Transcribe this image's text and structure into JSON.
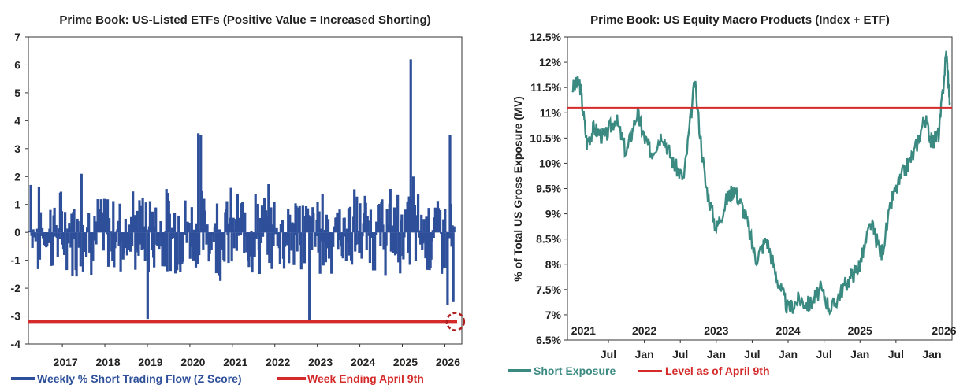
{
  "colors": {
    "bar_blue": "#2e4f9a",
    "ref_red": "#d42a2a",
    "line_teal": "#3b8a82",
    "axis": "#333333",
    "text_blue": "#2e4f9a",
    "text_teal": "#3b8a82",
    "text_red": "#d42a2a"
  },
  "chart_data": [
    {
      "type": "bar",
      "title": "Prime Book: US-Listed ETFs (Positive Value = Increased Shorting)",
      "xlabel": "",
      "ylabel": "",
      "ylim": [
        -4,
        7
      ],
      "yticks": [
        "7",
        "6",
        "5",
        "4",
        "3",
        "2",
        "1",
        "0",
        "-1",
        "-2",
        "-3",
        "-4"
      ],
      "xticks": [
        "2017",
        "2018",
        "2019",
        "2020",
        "2021",
        "2022",
        "2023",
        "2024",
        "2025",
        "2026"
      ],
      "xlim": [
        2016.2,
        2026.4
      ],
      "grid": false,
      "legend": [
        "Weekly % Short Trading Flow (Z Score)",
        "Week Ending April 9th"
      ],
      "legend_position": "bottom",
      "reference_line": {
        "name": "Week Ending April 9th",
        "value": -3.2
      },
      "series": [
        {
          "name": "Weekly % Short Trading Flow (Z Score)",
          "highlights": [
            {
              "x": 2016.25,
              "value": 1.7
            },
            {
              "x": 2017.45,
              "value": 2.1
            },
            {
              "x": 2019.0,
              "value": -3.1
            },
            {
              "x": 2020.2,
              "value": 3.55
            },
            {
              "x": 2020.25,
              "value": 3.5
            },
            {
              "x": 2022.8,
              "value": -3.2
            },
            {
              "x": 2025.2,
              "value": 6.2
            },
            {
              "x": 2025.25,
              "value": 2.0
            },
            {
              "x": 2026.05,
              "value": -2.6
            },
            {
              "x": 2026.12,
              "value": 3.5
            },
            {
              "x": 2026.2,
              "value": -2.5
            }
          ]
        }
      ],
      "annotation": "dashed circle marks latest week"
    },
    {
      "type": "line",
      "title": "Prime Book: US Equity Macro Products (Index + ETF)",
      "xlabel": "",
      "ylabel": "% of Total US Gross Exposure (MV)",
      "ylim": [
        6.5,
        12.5
      ],
      "yticks": [
        "12.5%",
        "12%",
        "11.5%",
        "11%",
        "10.5%",
        "10%",
        "9.5%",
        "9%",
        "8.5%",
        "8%",
        "7.5%",
        "7%",
        "6.5%"
      ],
      "year_labels": [
        "2021",
        "2022",
        "2023",
        "2024",
        "2025",
        "2026"
      ],
      "month_labels": [
        "Jul",
        "Jan",
        "Jul",
        "Jan",
        "Jul",
        "Jan",
        "Jul",
        "Jan",
        "Jul",
        "Jan"
      ],
      "grid": false,
      "legend": [
        "Short Exposure",
        "Level as of April 9th"
      ],
      "legend_position": "bottom",
      "reference_line": {
        "name": "Level as of April 9th",
        "value": 11.1
      },
      "series": [
        {
          "name": "Short Exposure",
          "x": [
            2021.0,
            2021.1,
            2021.2,
            2021.3,
            2021.45,
            2021.6,
            2021.75,
            2021.9,
            2022.0,
            2022.1,
            2022.25,
            2022.4,
            2022.55,
            2022.7,
            2022.85,
            2023.0,
            2023.15,
            2023.25,
            2023.4,
            2023.55,
            2023.7,
            2023.85,
            2024.0,
            2024.15,
            2024.3,
            2024.45,
            2024.6,
            2024.75,
            2024.9,
            2025.0,
            2025.15,
            2025.3,
            2025.45,
            2025.6,
            2025.75,
            2025.9,
            2026.0,
            2026.1,
            2026.2,
            2026.25
          ],
          "values": [
            11.5,
            11.6,
            10.4,
            10.7,
            10.5,
            10.9,
            10.2,
            11.0,
            10.5,
            10.2,
            10.6,
            10.0,
            9.7,
            11.6,
            9.6,
            8.7,
            9.3,
            9.5,
            9.0,
            8.1,
            8.5,
            7.7,
            7.1,
            7.3,
            7.2,
            7.5,
            7.1,
            7.5,
            7.8,
            8.0,
            8.8,
            8.2,
            9.3,
            9.8,
            10.2,
            10.9,
            10.4,
            10.6,
            12.2,
            11.2
          ]
        }
      ]
    }
  ]
}
